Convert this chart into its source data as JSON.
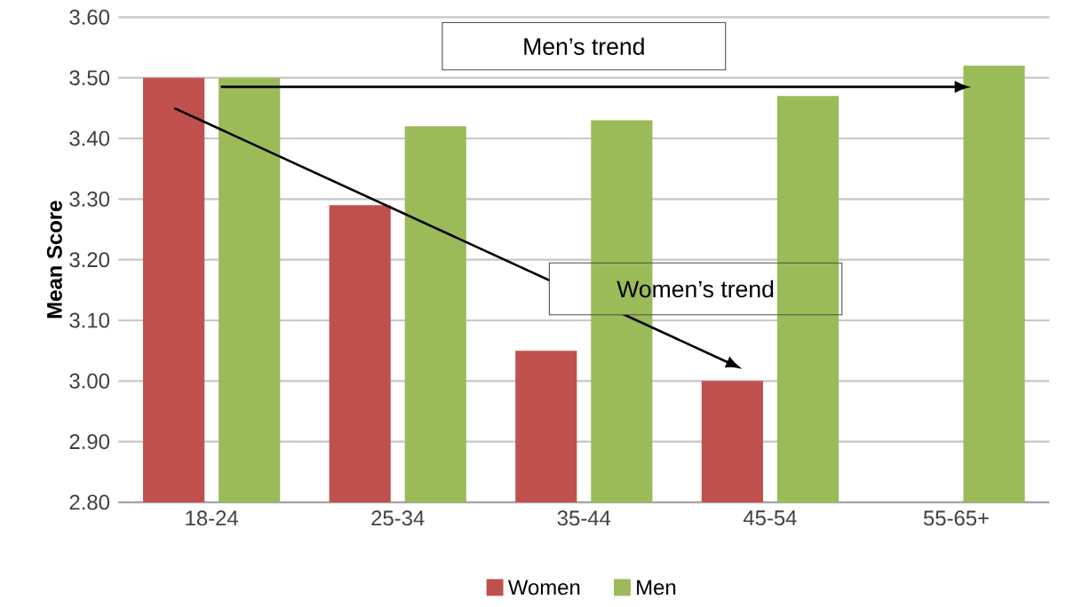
{
  "chart_data": {
    "type": "bar",
    "ylabel": "Mean Score",
    "categories": [
      "18-24",
      "25-34",
      "35-44",
      "45-54",
      "55-65+"
    ],
    "series": [
      {
        "name": "Women",
        "color": "#c0504d",
        "values": [
          3.5,
          3.29,
          3.05,
          3.0,
          null
        ]
      },
      {
        "name": "Men",
        "color": "#9bbb59",
        "values": [
          3.5,
          3.42,
          3.43,
          3.47,
          3.52
        ]
      }
    ],
    "ylim": [
      2.8,
      3.6
    ],
    "yticks": [
      {
        "value": 2.8,
        "label": "2.80"
      },
      {
        "value": 2.9,
        "label": "2.90"
      },
      {
        "value": 3.0,
        "label": "3.00"
      },
      {
        "value": 3.1,
        "label": "3.10"
      },
      {
        "value": 3.2,
        "label": "3.20"
      },
      {
        "value": 3.3,
        "label": "3.30"
      },
      {
        "value": 3.4,
        "label": "3.40"
      },
      {
        "value": 3.5,
        "label": "3.50"
      },
      {
        "value": 3.6,
        "label": "3.60"
      }
    ],
    "grid": "y",
    "legend": "bottom",
    "annotations": [
      "Men’s trend",
      "Women’s trend"
    ]
  }
}
